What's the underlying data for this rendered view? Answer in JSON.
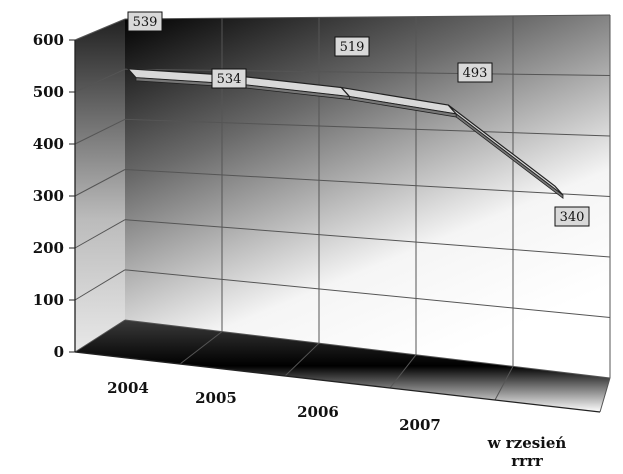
{
  "chart_data": {
    "type": "line",
    "categories": [
      "2004",
      "2005",
      "2006",
      "2007",
      "w rzesień rrrr"
    ],
    "values": [
      539,
      534,
      519,
      493,
      340
    ],
    "yticks": [
      "0",
      "100",
      "200",
      "300",
      "400",
      "500",
      "600"
    ],
    "ylim": [
      0,
      600
    ],
    "grid": true,
    "style": "3d",
    "colors": {
      "wall_dark": "#000000",
      "wall_light": "#ffffff",
      "line_face": "#d9d9d9",
      "label_bg": "#d9d9d9"
    }
  }
}
